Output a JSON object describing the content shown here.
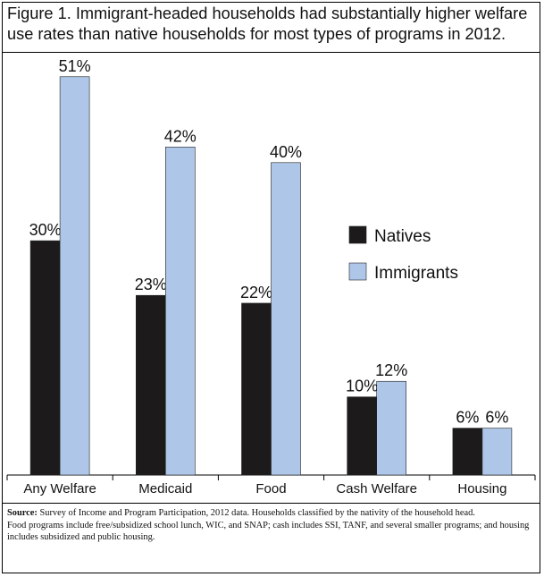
{
  "title": "Figure 1. Immigrant-headed households had substantially higher welfare use rates than native households for most types of programs in 2012.",
  "source": {
    "label": "Source:",
    "line1": "Survey of Income and Program Participation, 2012 data. Households classified by the nativity of the household head.",
    "line2": "Food programs include free/subsidized school lunch, WIC, and SNAP; cash includes SSI, TANF, and several smaller programs; and housing includes subsidized and public housing."
  },
  "chart_data": {
    "type": "bar",
    "categories": [
      "Any Welfare",
      "Medicaid",
      "Food",
      "Cash Welfare",
      "Housing"
    ],
    "series": [
      {
        "name": "Natives",
        "values": [
          30,
          23,
          22,
          10,
          6
        ],
        "labels": [
          "30%",
          "23%",
          "22%",
          "10%",
          "6%"
        ],
        "color": "#1c1a1b"
      },
      {
        "name": "Immigrants",
        "values": [
          51,
          42,
          40,
          12,
          6
        ],
        "labels": [
          "51%",
          "42%",
          "40%",
          "12%",
          "6%"
        ],
        "color": "#aec6e7"
      }
    ],
    "ylim": [
      0,
      55
    ],
    "grid": false,
    "legend": "right"
  }
}
